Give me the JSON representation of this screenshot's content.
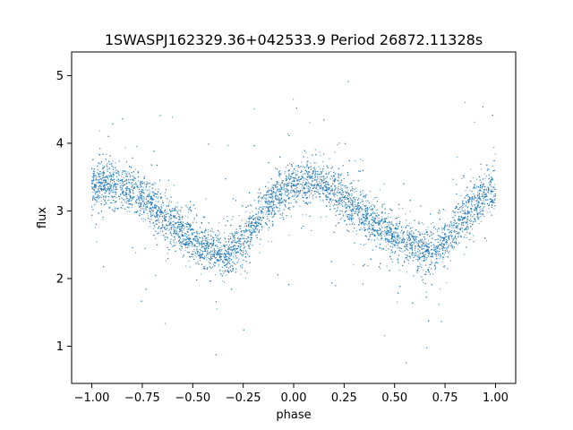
{
  "chart_data": {
    "type": "scatter",
    "title": "1SWASPJ162329.36+042533.9 Period 26872.11328s",
    "xlabel": "phase",
    "ylabel": "flux",
    "xlim": [
      -1.1,
      1.1
    ],
    "ylim": [
      0.45,
      5.35
    ],
    "xticks": [
      -1.0,
      -0.75,
      -0.5,
      -0.25,
      0.0,
      0.25,
      0.5,
      0.75,
      1.0
    ],
    "xtick_labels": [
      "−1.00",
      "−0.75",
      "−0.50",
      "−0.25",
      "0.00",
      "0.25",
      "0.50",
      "0.75",
      "1.00"
    ],
    "yticks": [
      1,
      2,
      3,
      4,
      5
    ],
    "ytick_labels": [
      "1",
      "2",
      "3",
      "4",
      "5"
    ],
    "grid": false,
    "legend": "none",
    "point_color": "#1f77b4",
    "series": [
      {
        "x": [
          -1.0,
          -0.95,
          -0.9,
          -0.85,
          -0.8,
          -0.75,
          -0.7,
          -0.65,
          -0.6,
          -0.55,
          -0.5,
          -0.45,
          -0.4,
          -0.35,
          -0.3,
          -0.25,
          -0.2,
          -0.15,
          -0.1,
          -0.05,
          0.0,
          0.05,
          0.1,
          0.15,
          0.2,
          0.25,
          0.3,
          0.35,
          0.4,
          0.45,
          0.5,
          0.55,
          0.6,
          0.65,
          0.7,
          0.75,
          0.8,
          0.85,
          0.9,
          0.95,
          1.0
        ],
        "y": [
          3.3,
          3.38,
          3.42,
          3.38,
          3.3,
          3.2,
          3.07,
          2.95,
          2.82,
          2.7,
          2.58,
          2.48,
          2.42,
          2.38,
          2.4,
          2.55,
          2.78,
          3.0,
          3.18,
          3.3,
          3.35,
          3.4,
          3.45,
          3.4,
          3.3,
          3.2,
          3.07,
          2.95,
          2.82,
          2.7,
          2.6,
          2.5,
          2.43,
          2.4,
          2.42,
          2.55,
          2.75,
          2.95,
          3.12,
          3.25,
          3.3
        ]
      }
    ]
  }
}
